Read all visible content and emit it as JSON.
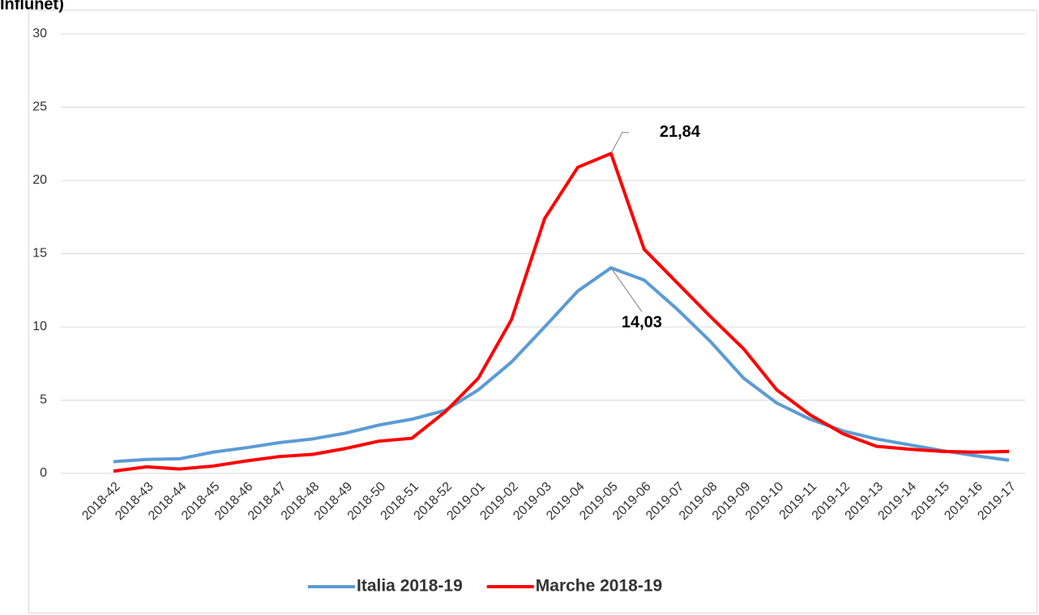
{
  "chart_data": {
    "type": "line",
    "title": "Influnet)",
    "categories": [
      "2018-42",
      "2018-43",
      "2018-44",
      "2018-45",
      "2018-46",
      "2018-47",
      "2018-48",
      "2018-49",
      "2018-50",
      "2018-51",
      "2018-52",
      "2019-01",
      "2019-02",
      "2019-03",
      "2019-04",
      "2019-05",
      "2019-06",
      "2019-07",
      "2019-08",
      "2019-09",
      "2019-10",
      "2019-11",
      "2019-12",
      "2019-13",
      "2019-14",
      "2019-15",
      "2019-16",
      "2019-17"
    ],
    "series": [
      {
        "name": "Italia 2018-19",
        "color": "#5b9bd5",
        "values": [
          0.8,
          0.95,
          1.0,
          1.45,
          1.75,
          2.1,
          2.35,
          2.75,
          3.3,
          3.7,
          4.3,
          5.7,
          7.6,
          10.0,
          12.45,
          14.03,
          13.2,
          11.2,
          9.0,
          6.5,
          4.8,
          3.7,
          2.9,
          2.35,
          1.95,
          1.55,
          1.2,
          0.9
        ],
        "value_labels": [
          null,
          null,
          null,
          null,
          null,
          null,
          null,
          null,
          null,
          null,
          null,
          null,
          null,
          null,
          null,
          "14,03",
          null,
          null,
          null,
          null,
          null,
          null,
          null,
          null,
          null,
          null,
          null,
          null
        ]
      },
      {
        "name": "Marche 2018-19",
        "color": "#ff0000",
        "values": [
          0.15,
          0.45,
          0.3,
          0.5,
          0.85,
          1.15,
          1.3,
          1.7,
          2.2,
          2.4,
          4.2,
          6.5,
          10.5,
          17.4,
          20.9,
          21.84,
          15.3,
          13.0,
          10.7,
          8.5,
          5.7,
          4.0,
          2.7,
          1.85,
          1.65,
          1.5,
          1.45,
          1.5
        ],
        "value_labels": [
          null,
          null,
          null,
          null,
          null,
          null,
          null,
          null,
          null,
          null,
          null,
          null,
          null,
          null,
          null,
          "21,84",
          null,
          null,
          null,
          null,
          null,
          null,
          null,
          null,
          null,
          null,
          null,
          null
        ]
      }
    ],
    "ylim": [
      0,
      30
    ],
    "yticks": [
      0,
      5,
      10,
      15,
      20,
      25,
      30
    ],
    "grid": true,
    "legend": "bottom"
  }
}
